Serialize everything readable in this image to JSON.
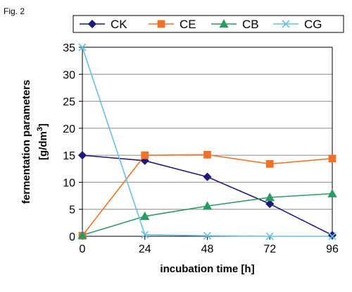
{
  "figure": {
    "label": "Fig. 2"
  },
  "colors": {
    "CK": "#1f1a7a",
    "CE": "#f0722a",
    "CB": "#2e9a63",
    "CG": "#68c1de",
    "grid": "#8c8c8c",
    "frame": "#000000"
  },
  "icons": {
    "CK": "diamond-marker",
    "CE": "square-marker",
    "CB": "triangle-marker",
    "CG": "x-marker"
  },
  "chart_data": {
    "type": "line",
    "x": [
      0,
      24,
      48,
      72,
      96
    ],
    "xlabel": "incubation time [h]",
    "ylabel_line1": "fermentation parameters",
    "ylabel_line2_prefix": "[g/dm",
    "ylabel_line2_sup": "3",
    "ylabel_line2_suffix": "]",
    "xlim": [
      0,
      96
    ],
    "ylim": [
      0,
      35
    ],
    "xticks": [
      0,
      24,
      48,
      72,
      96
    ],
    "yticks": [
      0,
      5,
      10,
      15,
      20,
      25,
      30,
      35
    ],
    "grid": "horizontal",
    "legend_position": "top",
    "series": [
      {
        "name": "CK",
        "marker": "diamond",
        "values": [
          15.0,
          14.0,
          11.0,
          6.0,
          0.2
        ]
      },
      {
        "name": "CE",
        "marker": "square",
        "values": [
          0.1,
          15.0,
          15.1,
          13.4,
          14.4
        ]
      },
      {
        "name": "CB",
        "marker": "triangle",
        "values": [
          0.2,
          3.7,
          5.6,
          7.2,
          7.9
        ]
      },
      {
        "name": "CG",
        "marker": "x",
        "values": [
          35.0,
          0.3,
          0.1,
          0.0,
          0.0
        ]
      }
    ]
  }
}
